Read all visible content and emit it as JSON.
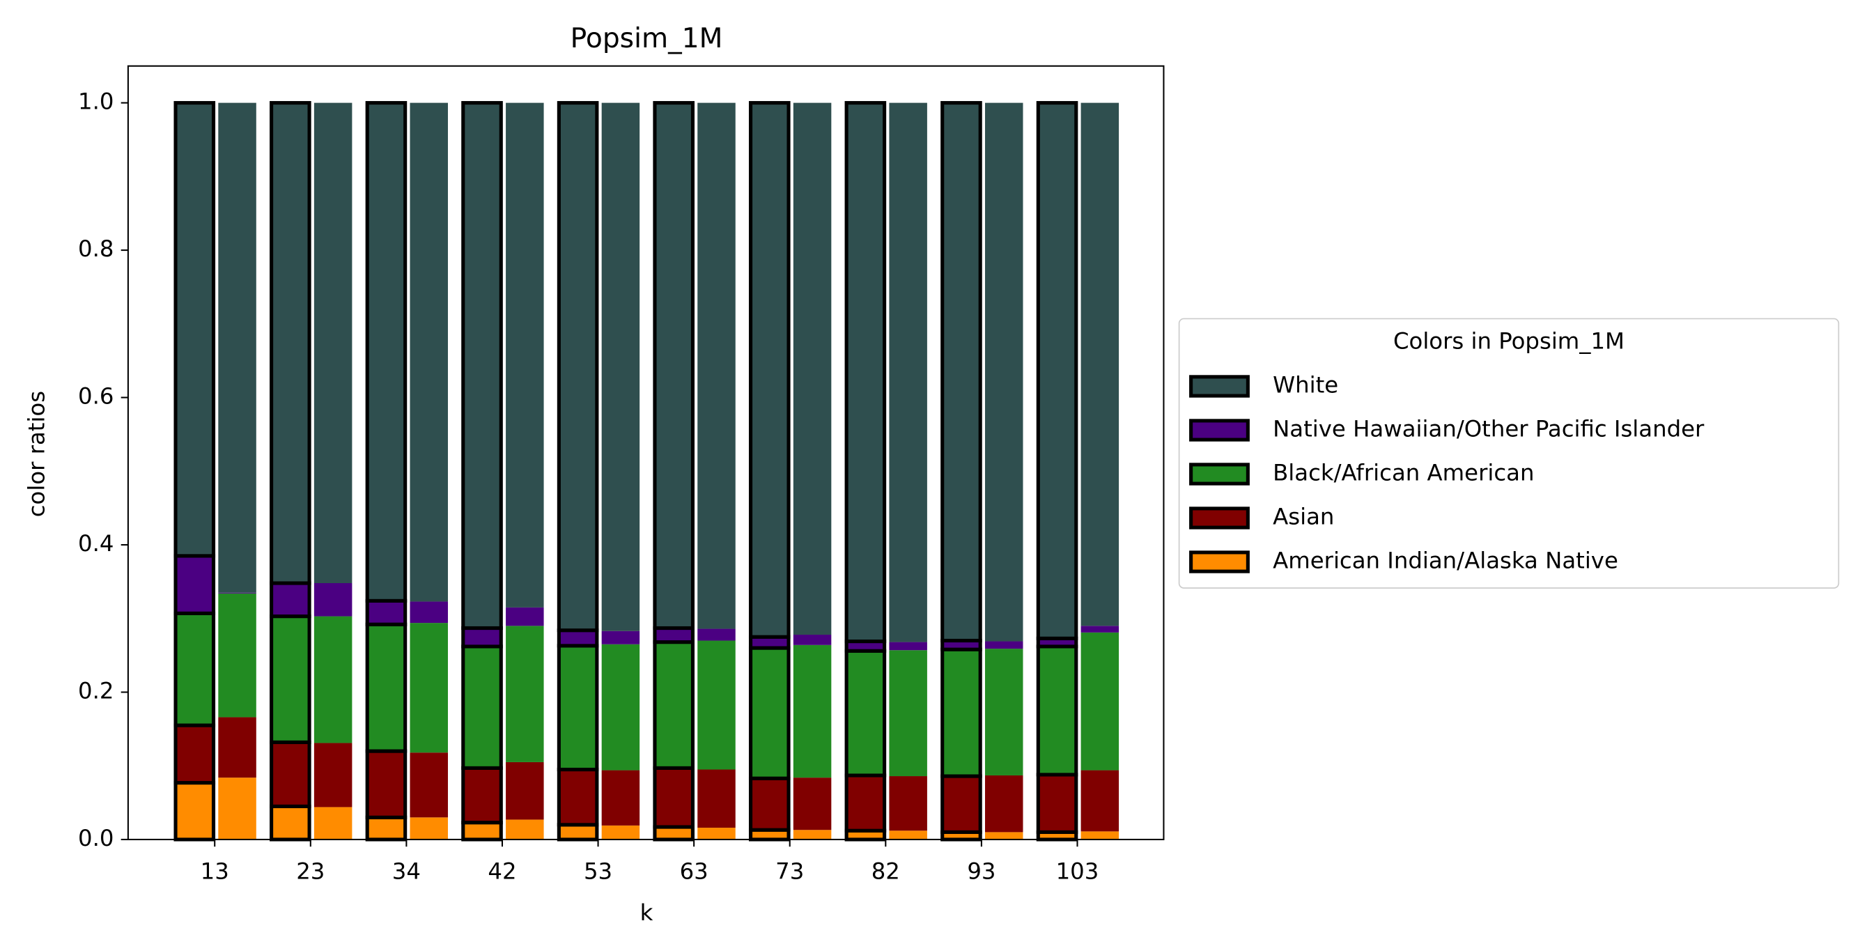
{
  "chart_data": {
    "type": "paired_stacked_bar",
    "title": "Popsim_1M",
    "x_label": "k",
    "y_label": "color ratios",
    "categories": [
      "13",
      "23",
      "34",
      "42",
      "53",
      "63",
      "73",
      "82",
      "93",
      "103"
    ],
    "ylim": [
      0,
      1.05
    ],
    "yticks": [
      {
        "value": 0,
        "label": "0.0"
      },
      {
        "value": 0.2,
        "label": "0.2"
      },
      {
        "value": 0.4,
        "label": "0.4"
      },
      {
        "value": 0.6,
        "label": "0.6"
      },
      {
        "value": 0.8,
        "label": "0.8"
      },
      {
        "value": 1,
        "label": "1.0"
      }
    ],
    "outline_color": "#000000",
    "legend_title": "Colors in Popsim_1M",
    "legend": "right outside",
    "series": [
      {
        "name": "White",
        "color": "#2f4f4f",
        "values": [
          0.615,
          0.652,
          0.676,
          0.713,
          0.716,
          0.713,
          0.725,
          0.731,
          0.73,
          0.727
        ],
        "values_plain": [
          0.665,
          0.652,
          0.677,
          0.685,
          0.717,
          0.714,
          0.722,
          0.732,
          0.731,
          0.71
        ]
      },
      {
        "name": "Native Hawaiian/Other Pacific Islander",
        "color": "#4b0082",
        "values": [
          0.078,
          0.045,
          0.032,
          0.025,
          0.021,
          0.019,
          0.015,
          0.013,
          0.012,
          0.011
        ],
        "values_plain": [
          0.001,
          0.045,
          0.029,
          0.025,
          0.018,
          0.016,
          0.014,
          0.011,
          0.01,
          0.009
        ]
      },
      {
        "name": "Black/African American",
        "color": "#228b22",
        "values": [
          0.152,
          0.171,
          0.172,
          0.165,
          0.168,
          0.171,
          0.177,
          0.169,
          0.172,
          0.174
        ],
        "values_plain": [
          0.168,
          0.172,
          0.176,
          0.185,
          0.171,
          0.175,
          0.18,
          0.171,
          0.172,
          0.187
        ]
      },
      {
        "name": "Asian",
        "color": "#800000",
        "values": [
          0.078,
          0.087,
          0.09,
          0.074,
          0.075,
          0.08,
          0.07,
          0.075,
          0.076,
          0.078
        ],
        "values_plain": [
          0.082,
          0.087,
          0.088,
          0.078,
          0.075,
          0.079,
          0.071,
          0.074,
          0.077,
          0.083
        ]
      },
      {
        "name": "American Indian/Alaska Native",
        "color": "#ff8c00",
        "values": [
          0.077,
          0.045,
          0.03,
          0.023,
          0.02,
          0.017,
          0.013,
          0.012,
          0.01,
          0.01
        ],
        "values_plain": [
          0.084,
          0.044,
          0.03,
          0.027,
          0.019,
          0.016,
          0.013,
          0.012,
          0.01,
          0.011
        ]
      }
    ]
  }
}
